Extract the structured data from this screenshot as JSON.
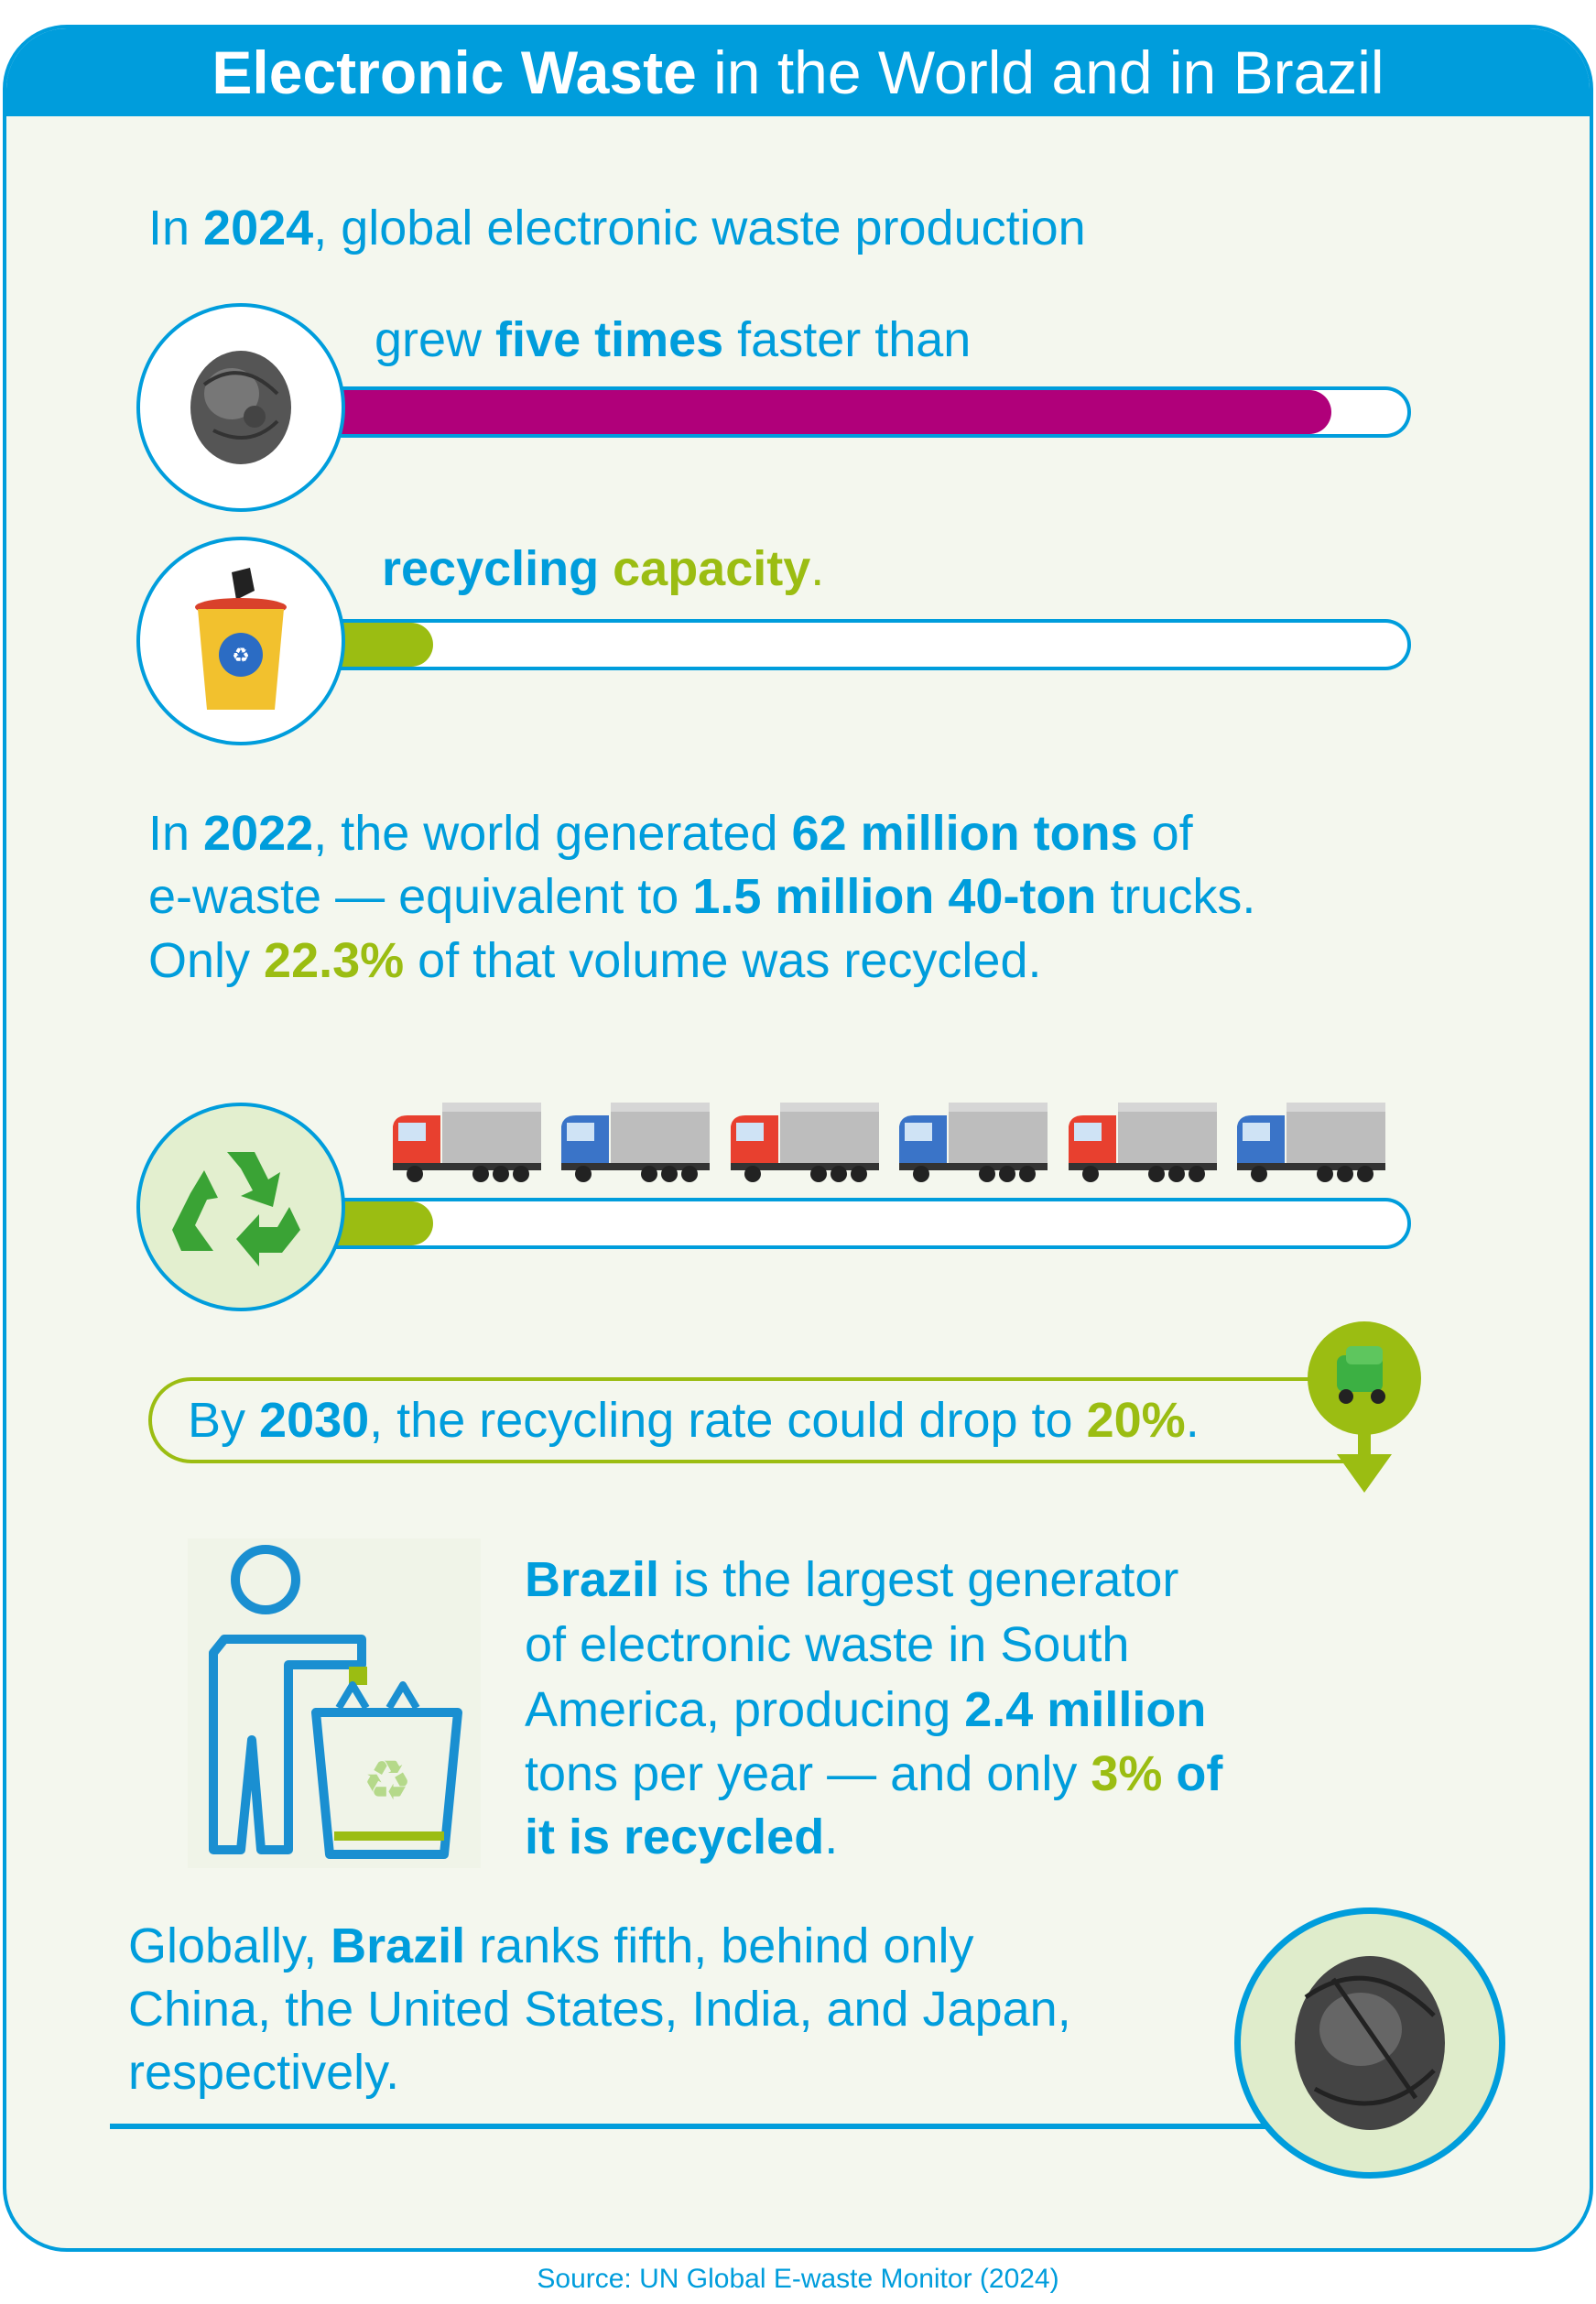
{
  "header": {
    "title_bold": "Electronic Waste",
    "title_rest": " in the World and in Brazil"
  },
  "section1": {
    "intro": {
      "p1": "In ",
      "year": "2024",
      "p2": ", global electronic waste production"
    },
    "bar1_label": {
      "p1": "grew ",
      "bold": "five times",
      "p2": " faster than"
    },
    "bar2_label": {
      "p1": "recycling ",
      "green": "capacity",
      "p2": "."
    },
    "bar1_fill_fraction": 0.93,
    "bar2_fill_fraction": 0.1
  },
  "section2": {
    "l1": {
      "p1": "In ",
      "year": "2022",
      "p2": ", the world generated ",
      "bold": "62 million tons",
      "p3": " of"
    },
    "l2": {
      "p1": "e-waste — equivalent to ",
      "bold": "1.5 million 40-ton",
      "p2": " trucks."
    },
    "l3": {
      "p1": "Only ",
      "green": "22.3%",
      "p2": " of that volume was recycled."
    },
    "truck_colors": [
      "#e8402f",
      "#3a74c8",
      "#e8402f",
      "#3a74c8",
      "#e8402f",
      "#3a74c8"
    ],
    "bar3_fill_fraction": 0.1
  },
  "projection": {
    "p1": "By ",
    "year": "2030",
    "p2": ", the recycling rate could drop to ",
    "green": "20%",
    "p3": "."
  },
  "brazil": {
    "l1": {
      "bold": "Brazil",
      "p1": " is the largest generator"
    },
    "l2": "of electronic waste in South",
    "l3": {
      "p1": "America, producing ",
      "bold": "2.4 million"
    },
    "l4": {
      "p1": "tons per year — and only ",
      "green": "3%",
      "bold": " of"
    },
    "l5": {
      "bold": "it is recycled",
      "p1": "."
    }
  },
  "ranking": {
    "l1": {
      "p1": "Globally, ",
      "bold": "Brazil",
      "p2": " ranks fifth, behind only"
    },
    "l2": "China, the United States, India, and Japan,",
    "l3": "respectively."
  },
  "source": "Source: UN Global E-waste Monitor (2024)",
  "colors": {
    "blue": "#009ddc",
    "magenta": "#b0007a",
    "green": "#9bbd12",
    "background": "#f4f7ee"
  }
}
